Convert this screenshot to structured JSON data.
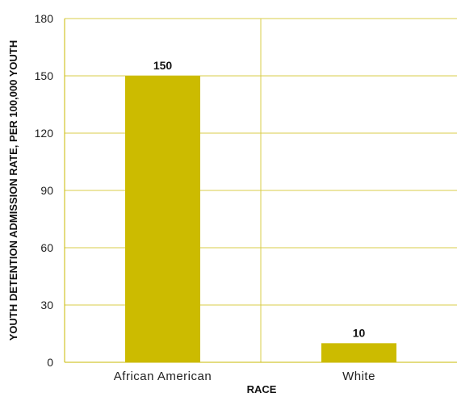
{
  "colors": {
    "bar": "#CCBB00",
    "grid": "#D8CC4A",
    "axis": "#C8B800"
  },
  "chart_data": {
    "type": "bar",
    "title": "",
    "xlabel": "RACE",
    "ylabel": "YOUTH DETENTION ADMISSION RATE, PER 100,000 YOUTH",
    "categories": [
      "African American",
      "White"
    ],
    "values": [
      150,
      10
    ],
    "data_labels": [
      "150",
      "10"
    ],
    "ylim": [
      0,
      180
    ],
    "yticks": [
      0,
      30,
      60,
      90,
      120,
      150,
      180
    ],
    "ytick_labels": [
      "0",
      "30",
      "60",
      "90",
      "120",
      "150",
      "180"
    ],
    "grid": true,
    "legend": "none"
  }
}
